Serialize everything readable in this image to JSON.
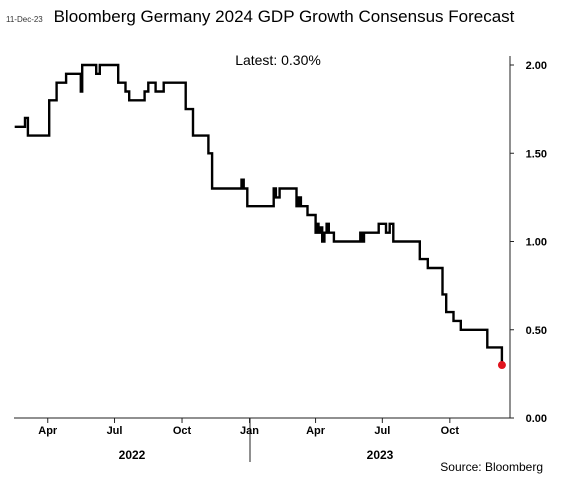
{
  "header": {
    "date": "11-Dec-23",
    "title": "Bloomberg Germany 2024 GDP Growth Consensus Forecast",
    "latest": "Latest:  0.30%"
  },
  "footer": {
    "source": "Source: Bloomberg"
  },
  "colors": {
    "line": "#000000",
    "latest_marker": "#e0141e",
    "axis": "#222222"
  },
  "chart_data": {
    "type": "line",
    "title": "Bloomberg Germany 2024 GDP Growth Consensus Forecast",
    "xlabel": "",
    "ylabel": "",
    "ylim": [
      0,
      2.0
    ],
    "xlim": [
      "2022-02-14",
      "2023-12-22"
    ],
    "y_axis_side": "right",
    "grid": false,
    "y_ticks": [
      "0.00",
      "0.50",
      "1.00",
      "1.50",
      "2.00"
    ],
    "x_ticks": [
      {
        "label": "Apr",
        "date": "2022-04-01"
      },
      {
        "label": "Jul",
        "date": "2022-07-01"
      },
      {
        "label": "Oct",
        "date": "2022-10-01"
      },
      {
        "label": "Jan",
        "date": "2023-01-01"
      },
      {
        "label": "Apr",
        "date": "2023-04-01"
      },
      {
        "label": "Jul",
        "date": "2023-07-01"
      },
      {
        "label": "Oct",
        "date": "2023-10-01"
      }
    ],
    "year_labels": [
      "2022",
      "2023"
    ],
    "series": [
      {
        "points": [
          [
            "2022-02-15",
            1.65
          ],
          [
            "2022-03-01",
            1.65
          ],
          [
            "2022-03-01",
            1.7
          ],
          [
            "2022-03-05",
            1.7
          ],
          [
            "2022-03-05",
            1.6
          ],
          [
            "2022-04-03",
            1.6
          ],
          [
            "2022-04-03",
            1.8
          ],
          [
            "2022-04-13",
            1.8
          ],
          [
            "2022-04-13",
            1.9
          ],
          [
            "2022-04-26",
            1.9
          ],
          [
            "2022-04-26",
            1.95
          ],
          [
            "2022-05-16",
            1.95
          ],
          [
            "2022-05-16",
            1.85
          ],
          [
            "2022-05-18",
            1.85
          ],
          [
            "2022-05-18",
            2.0
          ],
          [
            "2022-06-06",
            2.0
          ],
          [
            "2022-06-06",
            1.95
          ],
          [
            "2022-06-11",
            1.95
          ],
          [
            "2022-06-11",
            2.0
          ],
          [
            "2022-07-06",
            2.0
          ],
          [
            "2022-07-06",
            1.9
          ],
          [
            "2022-07-16",
            1.9
          ],
          [
            "2022-07-16",
            1.85
          ],
          [
            "2022-07-21",
            1.85
          ],
          [
            "2022-07-21",
            1.8
          ],
          [
            "2022-08-11",
            1.8
          ],
          [
            "2022-08-11",
            1.85
          ],
          [
            "2022-08-16",
            1.85
          ],
          [
            "2022-08-16",
            1.9
          ],
          [
            "2022-08-26",
            1.9
          ],
          [
            "2022-08-26",
            1.85
          ],
          [
            "2022-09-06",
            1.85
          ],
          [
            "2022-09-06",
            1.9
          ],
          [
            "2022-10-06",
            1.9
          ],
          [
            "2022-10-06",
            1.75
          ],
          [
            "2022-10-16",
            1.75
          ],
          [
            "2022-10-16",
            1.6
          ],
          [
            "2022-11-06",
            1.6
          ],
          [
            "2022-11-06",
            1.5
          ],
          [
            "2022-11-11",
            1.5
          ],
          [
            "2022-11-11",
            1.3
          ],
          [
            "2022-12-21",
            1.3
          ],
          [
            "2022-12-21",
            1.35
          ],
          [
            "2022-12-24",
            1.35
          ],
          [
            "2022-12-24",
            1.3
          ],
          [
            "2022-12-29",
            1.3
          ],
          [
            "2022-12-29",
            1.2
          ],
          [
            "2023-02-03",
            1.2
          ],
          [
            "2023-02-03",
            1.3
          ],
          [
            "2023-02-06",
            1.3
          ],
          [
            "2023-02-06",
            1.25
          ],
          [
            "2023-02-11",
            1.25
          ],
          [
            "2023-02-11",
            1.3
          ],
          [
            "2023-03-06",
            1.3
          ],
          [
            "2023-03-06",
            1.2
          ],
          [
            "2023-03-09",
            1.2
          ],
          [
            "2023-03-09",
            1.25
          ],
          [
            "2023-03-12",
            1.25
          ],
          [
            "2023-03-12",
            1.2
          ],
          [
            "2023-03-21",
            1.2
          ],
          [
            "2023-03-21",
            1.15
          ],
          [
            "2023-04-01",
            1.15
          ],
          [
            "2023-04-01",
            1.05
          ],
          [
            "2023-04-03",
            1.05
          ],
          [
            "2023-04-03",
            1.1
          ],
          [
            "2023-04-05",
            1.1
          ],
          [
            "2023-04-05",
            1.05
          ],
          [
            "2023-04-07",
            1.05
          ],
          [
            "2023-04-07",
            1.08
          ],
          [
            "2023-04-10",
            1.08
          ],
          [
            "2023-04-10",
            1.0
          ],
          [
            "2023-04-13",
            1.0
          ],
          [
            "2023-04-13",
            1.05
          ],
          [
            "2023-04-16",
            1.05
          ],
          [
            "2023-04-16",
            1.1
          ],
          [
            "2023-04-19",
            1.1
          ],
          [
            "2023-04-19",
            1.05
          ],
          [
            "2023-04-26",
            1.05
          ],
          [
            "2023-04-26",
            1.0
          ],
          [
            "2023-06-01",
            1.0
          ],
          [
            "2023-06-01",
            1.05
          ],
          [
            "2023-06-03",
            1.05
          ],
          [
            "2023-06-03",
            1.0
          ],
          [
            "2023-06-06",
            1.0
          ],
          [
            "2023-06-06",
            1.05
          ],
          [
            "2023-06-26",
            1.05
          ],
          [
            "2023-06-26",
            1.1
          ],
          [
            "2023-07-06",
            1.1
          ],
          [
            "2023-07-06",
            1.05
          ],
          [
            "2023-07-11",
            1.05
          ],
          [
            "2023-07-11",
            1.1
          ],
          [
            "2023-07-16",
            1.1
          ],
          [
            "2023-07-16",
            1.0
          ],
          [
            "2023-08-21",
            1.0
          ],
          [
            "2023-08-21",
            0.9
          ],
          [
            "2023-09-01",
            0.9
          ],
          [
            "2023-09-01",
            0.85
          ],
          [
            "2023-09-21",
            0.85
          ],
          [
            "2023-09-21",
            0.7
          ],
          [
            "2023-09-26",
            0.7
          ],
          [
            "2023-09-26",
            0.6
          ],
          [
            "2023-10-06",
            0.6
          ],
          [
            "2023-10-06",
            0.55
          ],
          [
            "2023-10-16",
            0.55
          ],
          [
            "2023-10-16",
            0.5
          ],
          [
            "2023-11-21",
            0.5
          ],
          [
            "2023-11-21",
            0.4
          ],
          [
            "2023-12-11",
            0.4
          ],
          [
            "2023-12-11",
            0.3
          ]
        ]
      }
    ],
    "latest_point": [
      "2023-12-11",
      0.3
    ]
  }
}
